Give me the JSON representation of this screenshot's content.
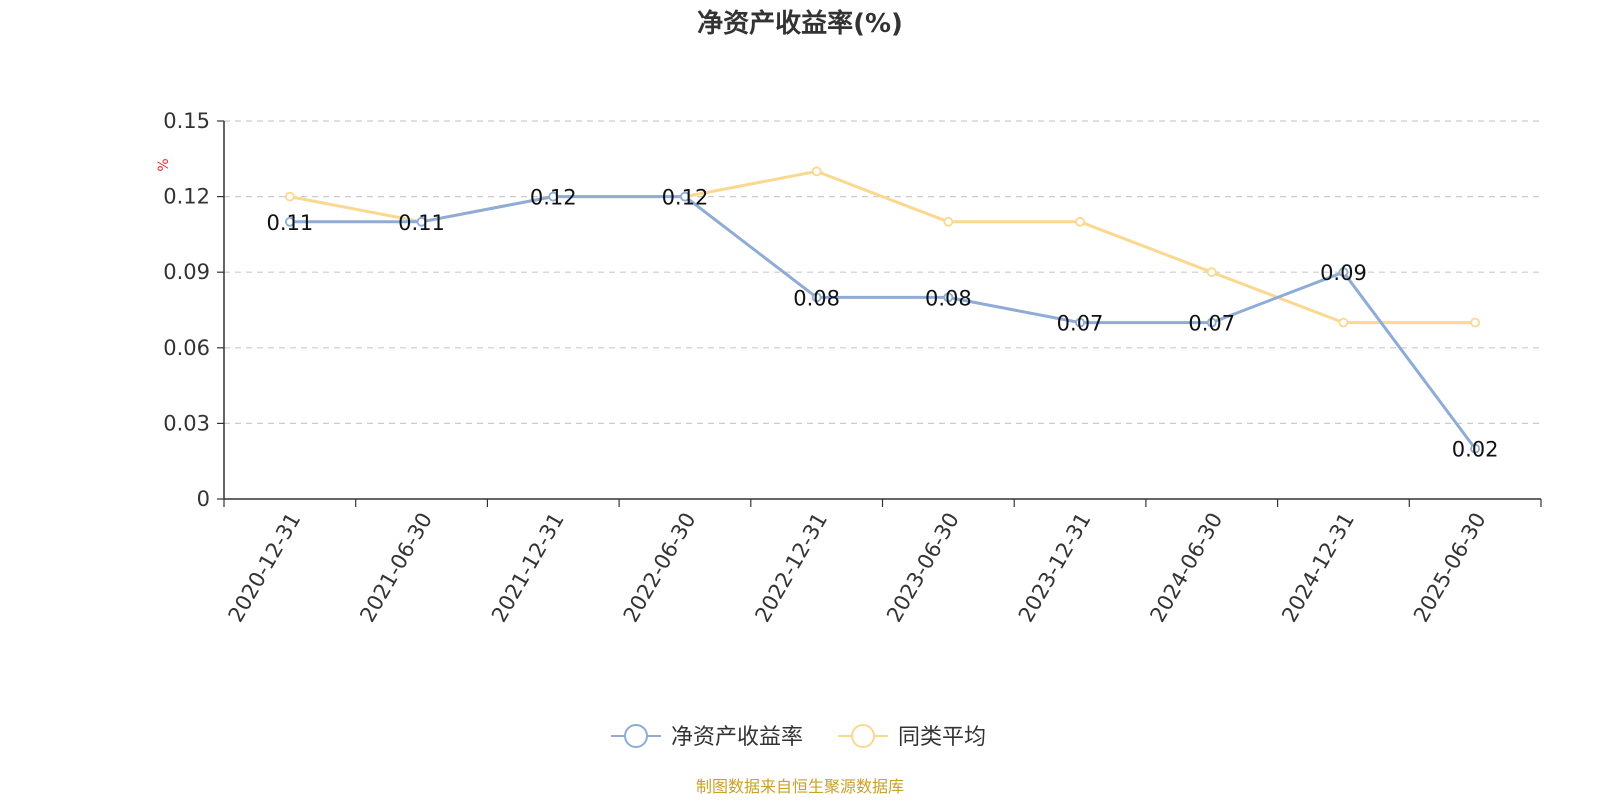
{
  "chart_data": {
    "type": "line",
    "title": "净资产收益率(%)",
    "ylabel": "%",
    "xlabel": "",
    "ylim": [
      0,
      0.15
    ],
    "yticks": [
      0,
      0.03,
      0.06,
      0.09,
      0.12,
      0.15
    ],
    "ytick_labels": [
      "0",
      "0.03",
      "0.06",
      "0.09",
      "0.12",
      "0.15"
    ],
    "grid": true,
    "legend_position": "bottom-center",
    "categories": [
      "2020-12-31",
      "2021-06-30",
      "2021-12-31",
      "2022-06-30",
      "2022-12-31",
      "2023-06-30",
      "2023-12-31",
      "2024-06-30",
      "2024-12-31",
      "2025-06-30"
    ],
    "series": [
      {
        "name": "净资产收益率",
        "color": "#8eacd6",
        "values": [
          0.11,
          0.11,
          0.12,
          0.12,
          0.08,
          0.08,
          0.07,
          0.07,
          0.09,
          0.02
        ],
        "labels": [
          "0.11",
          "0.11",
          "0.12",
          "0.12",
          "0.08",
          "0.08",
          "0.07",
          "0.07",
          "0.09",
          "0.02"
        ]
      },
      {
        "name": "同类平均",
        "color": "#fbd88f",
        "values": [
          0.12,
          0.11,
          0.12,
          0.12,
          0.13,
          0.11,
          0.11,
          0.09,
          0.07,
          0.07
        ]
      }
    ],
    "source": "制图数据来自恒生聚源数据库"
  }
}
